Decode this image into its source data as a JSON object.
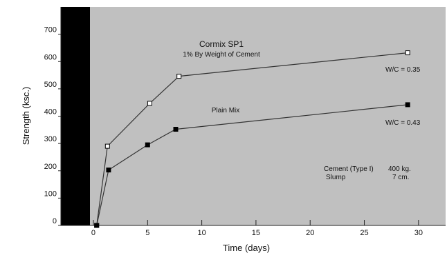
{
  "chart_data": {
    "type": "line",
    "title": "",
    "xlabel": "Time (days)",
    "ylabel": "Strength (ksc.)",
    "xlim": [
      -3,
      32.5
    ],
    "ylim": [
      0,
      800
    ],
    "x_ticks": [
      0,
      5,
      10,
      15,
      20,
      25,
      30
    ],
    "y_ticks": [
      0,
      100,
      200,
      300,
      400,
      500,
      600,
      700
    ],
    "grid": false,
    "legend": "none",
    "colors": {
      "plot_background": "#c0c0c0",
      "band": "#000000",
      "line": "#333333",
      "text": "#111111"
    },
    "series": [
      {
        "label": "W/C = 0.35",
        "marker": "open-square",
        "x": [
          0.3,
          1.3,
          5.2,
          7.9,
          29
        ],
        "y": [
          0,
          290,
          447,
          546,
          632
        ]
      },
      {
        "label": "W/C = 0.43",
        "marker": "filled-square",
        "x": [
          0.3,
          1.4,
          5.0,
          7.6,
          29
        ],
        "y": [
          0,
          203,
          295,
          352,
          442
        ]
      }
    ],
    "annotations": {
      "cormix_title": "Cormix SP1",
      "cormix_subtitle": "1% By Weight of Cement",
      "plain_mix": "Plain Mix",
      "wc_035": "W/C = 0.35",
      "wc_043": "W/C = 0.43",
      "cement_label": "Cement (Type I)",
      "cement_value": "400 kg.",
      "slump_label": "Slump",
      "slump_value": "7 cm."
    }
  }
}
